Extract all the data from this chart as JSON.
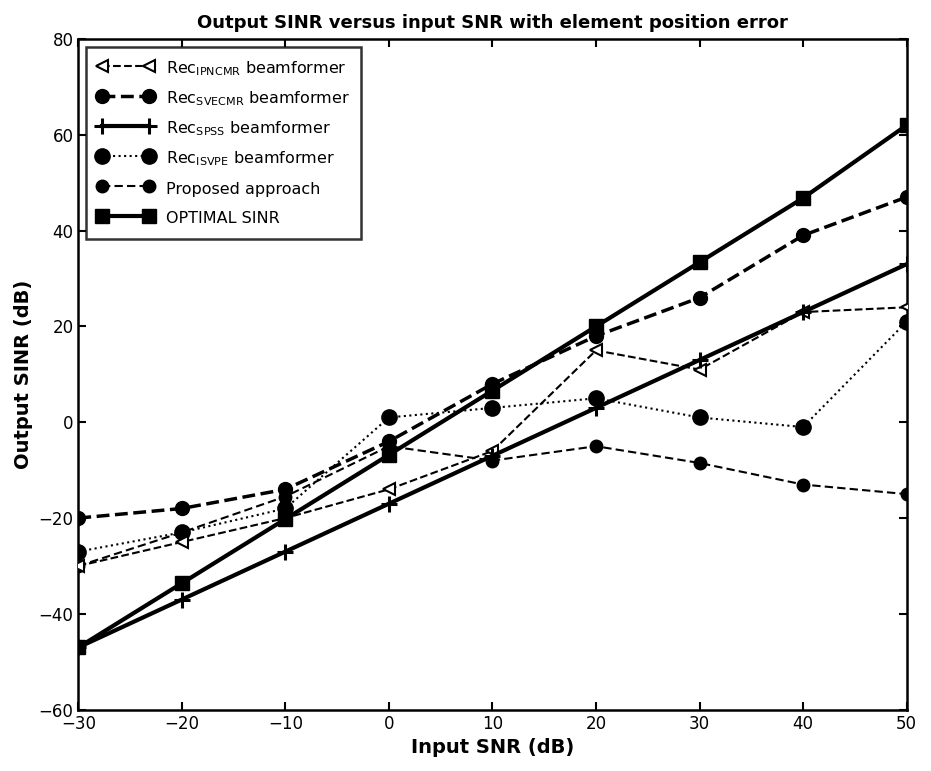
{
  "title": "Output SINR versus input SNR with element position error",
  "xlabel": "Input SNR (dB)",
  "ylabel": "Output SINR (dB)",
  "xlim": [
    -30,
    50
  ],
  "ylim": [
    -60,
    80
  ],
  "xticks": [
    -30,
    -20,
    -10,
    0,
    10,
    20,
    30,
    40,
    50
  ],
  "yticks": [
    -60,
    -40,
    -20,
    0,
    20,
    40,
    60,
    80
  ],
  "x": [
    -30,
    -20,
    -10,
    0,
    10,
    20,
    30,
    40,
    50
  ],
  "optimal_sinr": [
    -47.0,
    -33.6,
    -20.2,
    -6.8,
    6.6,
    20.0,
    33.4,
    46.8,
    62.0
  ],
  "rec_spss": [
    -47.0,
    -37.0,
    -27.0,
    -17.0,
    -7.0,
    3.0,
    13.0,
    23.0,
    33.0
  ],
  "rec_svecmr": [
    -20.0,
    -18.0,
    -14.0,
    -4.0,
    8.0,
    18.0,
    26.0,
    39.0,
    47.0
  ],
  "rec_ipncmr": [
    -30.0,
    -25.0,
    -20.0,
    -14.0,
    -6.0,
    15.0,
    11.0,
    23.0,
    24.0
  ],
  "rec_isvpe": [
    -27.0,
    -23.0,
    -18.0,
    1.0,
    3.0,
    5.0,
    1.0,
    -1.0,
    21.0
  ],
  "proposed": [
    -30.0,
    -23.0,
    -15.5,
    -5.0,
    -8.0,
    -5.0,
    -8.5,
    -13.0,
    -15.0
  ]
}
